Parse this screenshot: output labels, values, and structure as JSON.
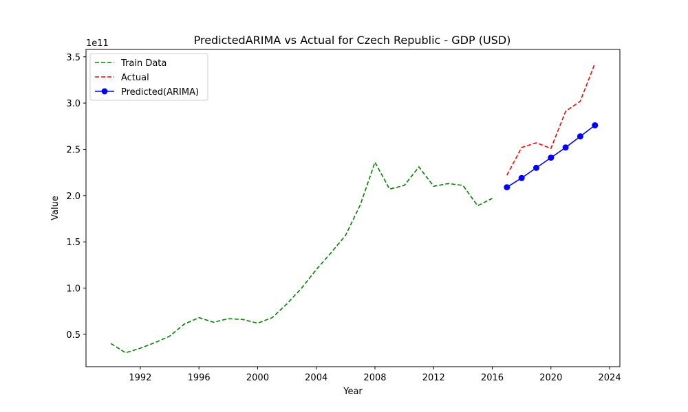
{
  "chart_data": {
    "type": "line",
    "title": "PredictedARIMA vs Actual for Czech Republic - GDP (USD)",
    "xlabel": "Year",
    "ylabel": "Value",
    "y_offset_label": "1e11",
    "xlim": [
      1988.3,
      2024.7
    ],
    "ylim": [
      0.15,
      3.58
    ],
    "x_ticks": [
      1992,
      1996,
      2000,
      2004,
      2008,
      2012,
      2016,
      2020,
      2024
    ],
    "y_ticks": [
      0.5,
      1.0,
      1.5,
      2.0,
      2.5,
      3.0,
      3.5
    ],
    "y_tick_labels": [
      "0.5",
      "1.0",
      "1.5",
      "2.0",
      "2.5",
      "3.0",
      "3.5"
    ],
    "legend_position": "top-left",
    "grid": false,
    "series": [
      {
        "name": "Train Data",
        "color": "#008000",
        "style": "dashed",
        "marker": "none",
        "x": [
          1990,
          1991,
          1992,
          1993,
          1994,
          1995,
          1996,
          1997,
          1998,
          1999,
          2000,
          2001,
          2002,
          2003,
          2004,
          2005,
          2006,
          2007,
          2008,
          2009,
          2010,
          2011,
          2012,
          2013,
          2014,
          2015,
          2016
        ],
        "y": [
          0.4,
          0.3,
          0.35,
          0.41,
          0.48,
          0.61,
          0.68,
          0.63,
          0.67,
          0.66,
          0.62,
          0.68,
          0.83,
          1.0,
          1.2,
          1.38,
          1.57,
          1.9,
          2.36,
          2.07,
          2.11,
          2.31,
          2.1,
          2.13,
          2.11,
          1.89,
          1.97
        ]
      },
      {
        "name": "Actual",
        "color": "#ff0000",
        "style": "dashed",
        "marker": "none",
        "x": [
          2017,
          2018,
          2019,
          2020,
          2021,
          2022,
          2023
        ],
        "y": [
          2.22,
          2.52,
          2.57,
          2.51,
          2.91,
          3.02,
          3.43
        ]
      },
      {
        "name": "Predicted(ARIMA)",
        "color": "#0000ff",
        "style": "solid",
        "marker": "circle",
        "x": [
          2017,
          2018,
          2019,
          2020,
          2021,
          2022,
          2023
        ],
        "y": [
          2.09,
          2.19,
          2.3,
          2.41,
          2.52,
          2.64,
          2.76
        ]
      }
    ]
  }
}
